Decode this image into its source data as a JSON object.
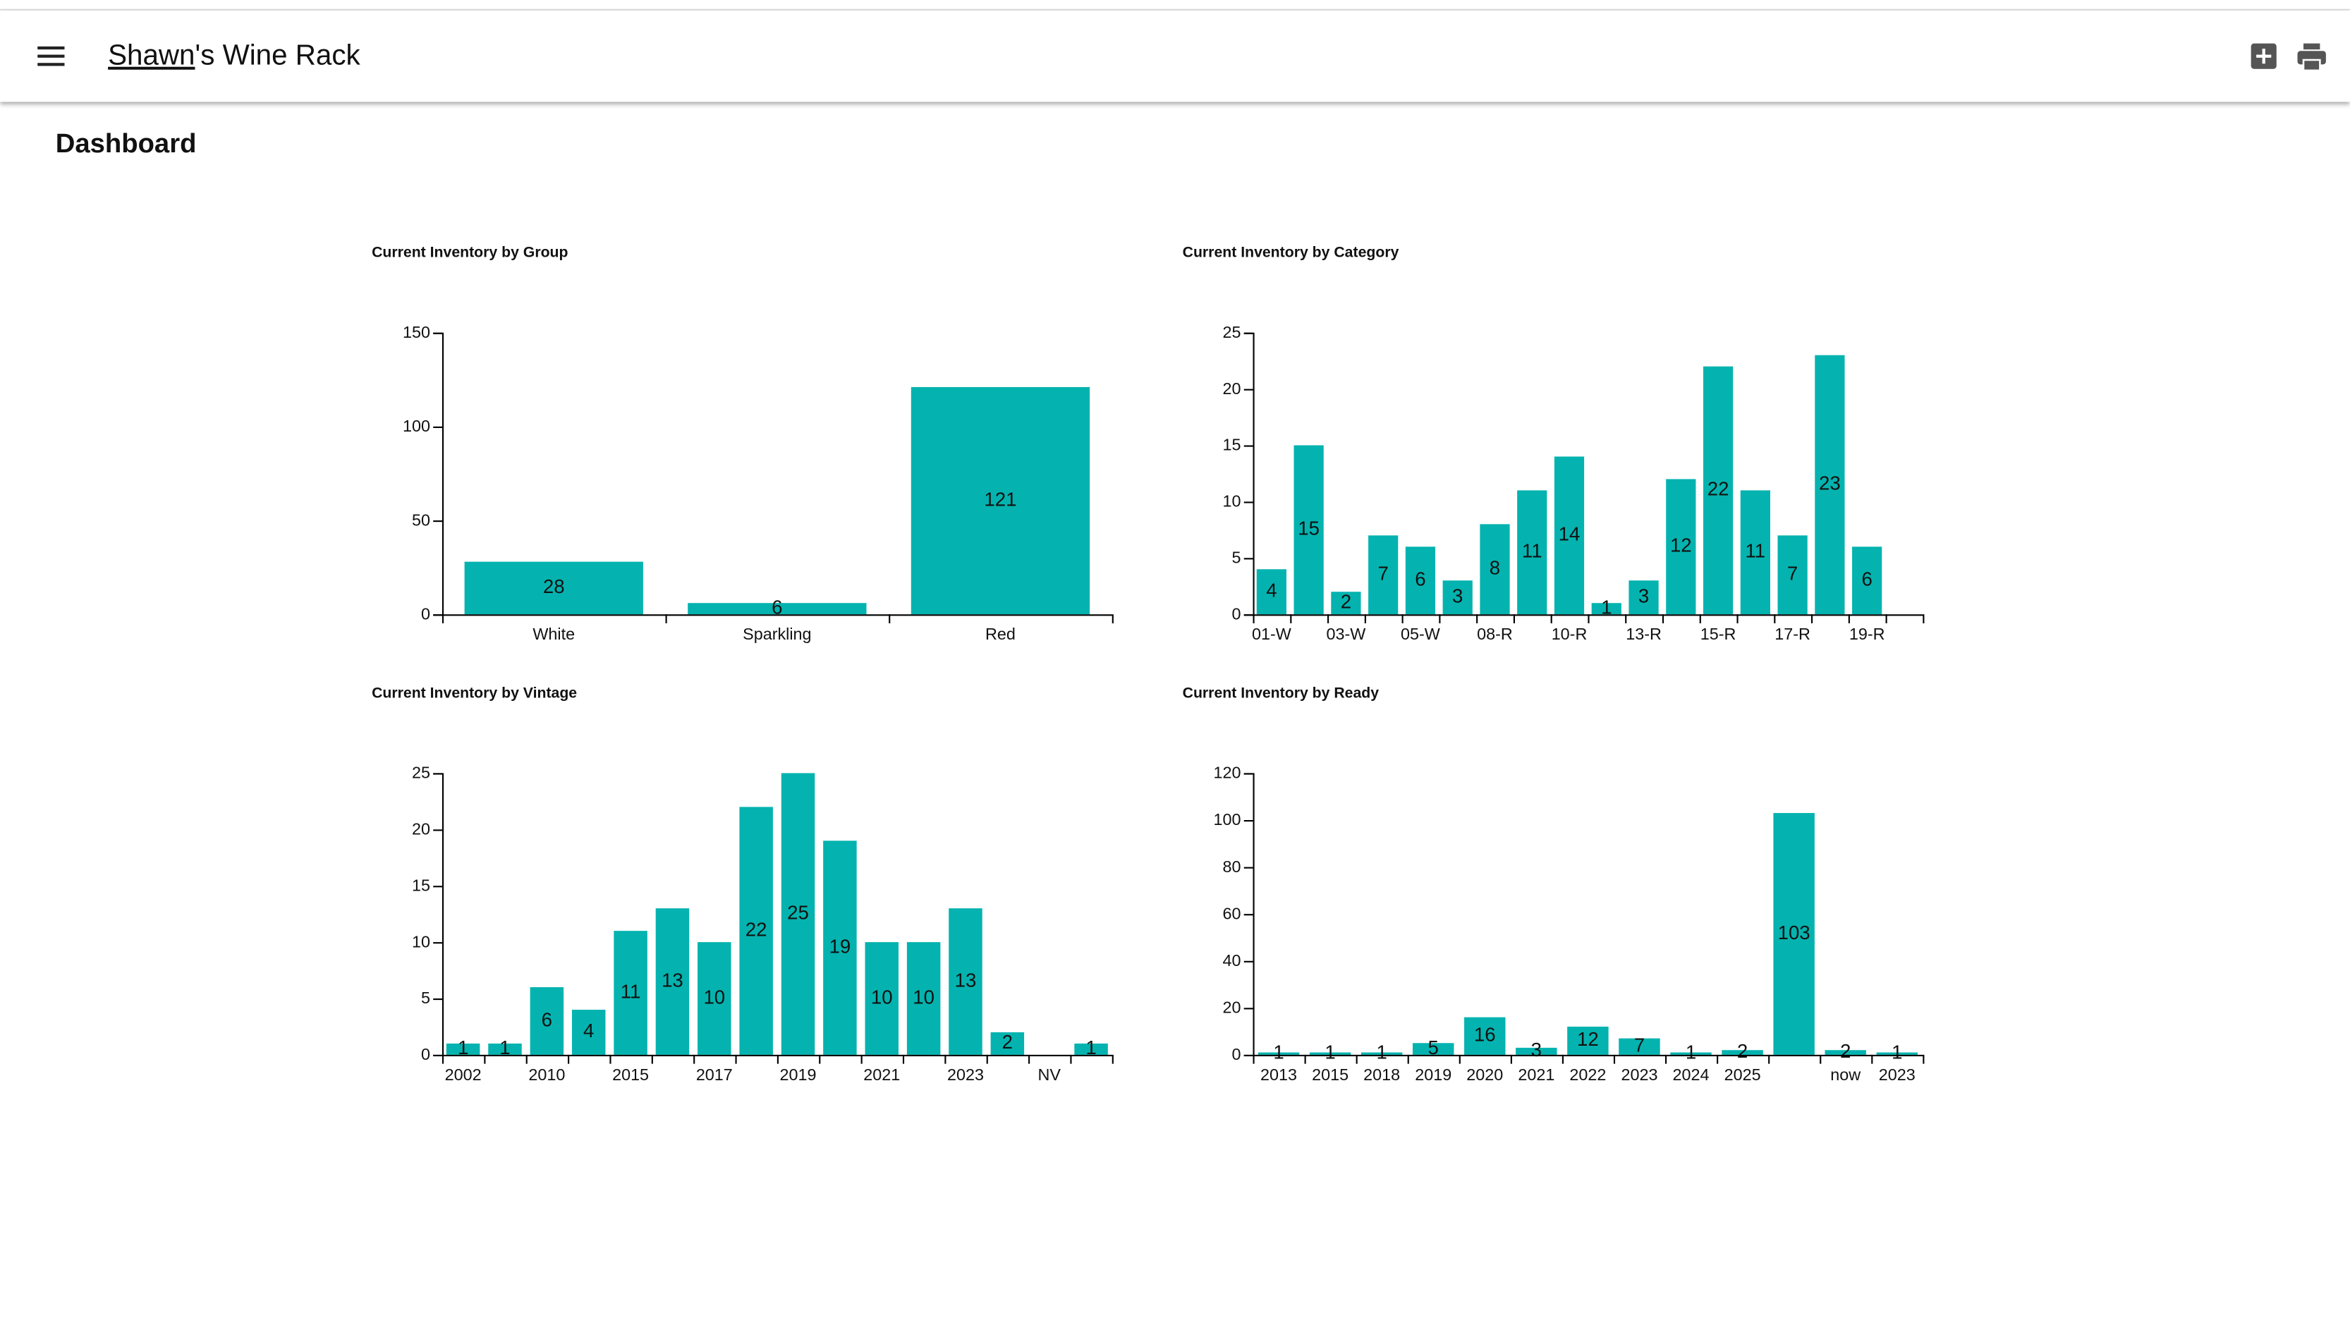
{
  "header": {
    "title_link": "Shawn",
    "title_rest": "'s Wine Rack"
  },
  "page": {
    "heading": "Dashboard"
  },
  "chart_data": [
    {
      "type": "bar",
      "title": "Current Inventory by Group",
      "color": "#04b3af",
      "categories": [
        "White",
        "Sparkling",
        "Red"
      ],
      "values": [
        28,
        6,
        121
      ],
      "ylim": [
        0,
        150
      ],
      "yticks": [
        0,
        50,
        100,
        150
      ]
    },
    {
      "type": "bar",
      "title": "Current Inventory by Category",
      "color": "#04b3af",
      "categories": [
        "01-W",
        null,
        "03-W",
        null,
        "05-W",
        null,
        "08-R",
        null,
        "10-R",
        null,
        "13-R",
        null,
        "15-R",
        null,
        "17-R",
        null,
        "19-R",
        null
      ],
      "values": [
        4,
        15,
        2,
        7,
        6,
        3,
        8,
        11,
        14,
        1,
        3,
        12,
        22,
        11,
        7,
        23,
        6,
        null
      ],
      "ylim": [
        0,
        25
      ],
      "yticks": [
        0,
        5,
        10,
        15,
        20,
        25
      ]
    },
    {
      "type": "bar",
      "title": "Current Inventory by Vintage",
      "color": "#04b3af",
      "categories": [
        "2002",
        null,
        "2010",
        null,
        "2015",
        null,
        "2017",
        null,
        "2019",
        null,
        "2021",
        null,
        "2023",
        null,
        "NV",
        null
      ],
      "values": [
        1,
        1,
        6,
        4,
        11,
        13,
        10,
        22,
        25,
        19,
        10,
        10,
        13,
        2,
        null,
        1
      ],
      "ylim": [
        0,
        25
      ],
      "yticks": [
        0,
        5,
        10,
        15,
        20,
        25
      ]
    },
    {
      "type": "bar",
      "title": "Current Inventory by Ready",
      "color": "#04b3af",
      "categories": [
        "2013",
        "2015",
        "2018",
        "2019",
        "2020",
        "2021",
        "2022",
        "2023",
        "2024",
        "2025",
        null,
        "now",
        "2023"
      ],
      "values": [
        1,
        1,
        1,
        5,
        16,
        3,
        12,
        7,
        1,
        2,
        103,
        2,
        1
      ],
      "ylim": [
        0,
        120
      ],
      "yticks": [
        0,
        20,
        40,
        60,
        80,
        100,
        120
      ]
    }
  ]
}
